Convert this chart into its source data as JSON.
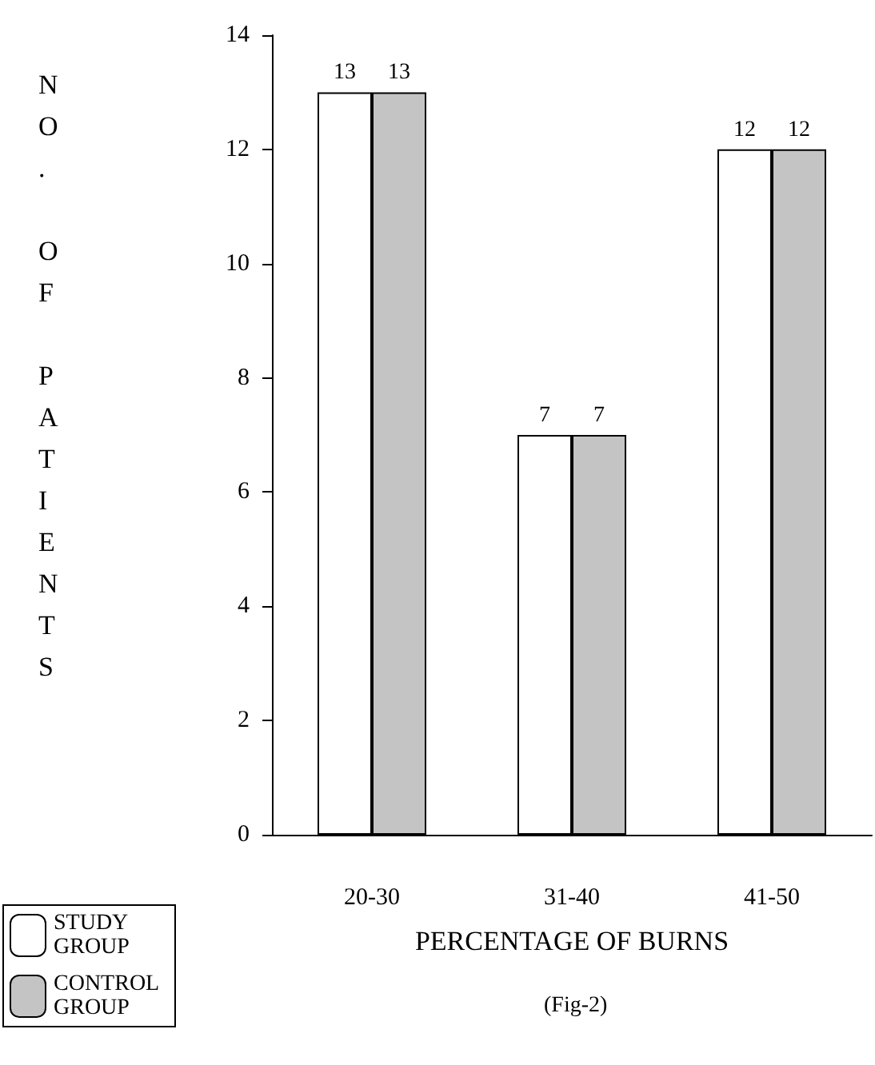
{
  "chart_data": {
    "type": "bar",
    "xlabel": "PERCENTAGE OF BURNS",
    "ylabel": "NO. OF PATIENTS",
    "annotations": [
      "(Fig-2)"
    ],
    "categories": [
      "20-30",
      "31-40",
      "41-50"
    ],
    "series": [
      {
        "name": "STUDY GROUP",
        "color": "#ffffff",
        "values": [
          13,
          7,
          12
        ]
      },
      {
        "name": "CONTROL GROUP",
        "color": "#c4c4c4",
        "values": [
          13,
          7,
          12
        ]
      }
    ],
    "ylim": [
      0,
      14
    ],
    "yticks": [
      0,
      2,
      4,
      6,
      8,
      10,
      12,
      14
    ],
    "data_labels": true,
    "legend": "bottom left",
    "grid": false
  }
}
